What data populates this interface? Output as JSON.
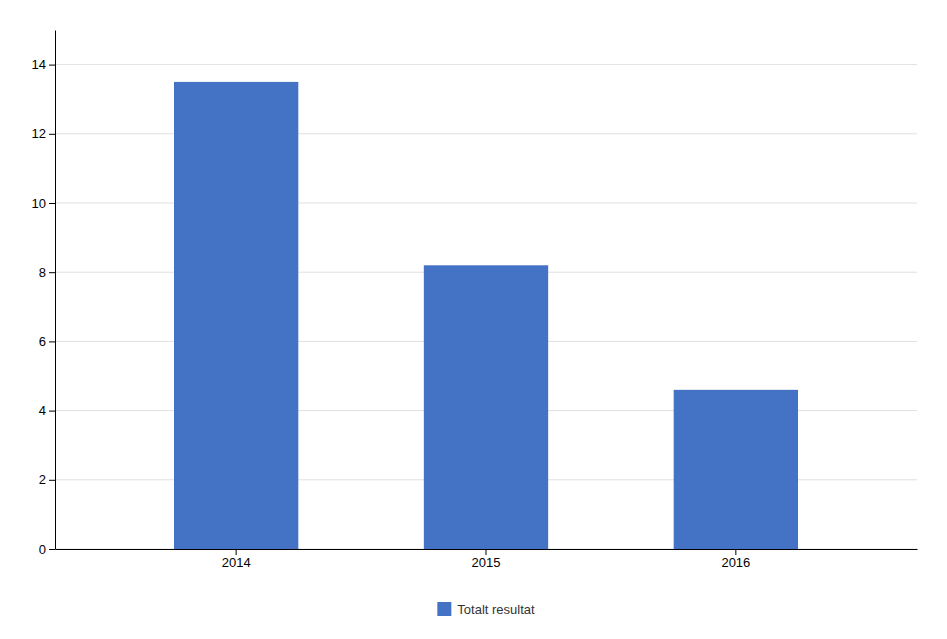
{
  "chart_data": {
    "type": "bar",
    "categories": [
      "2014",
      "2015",
      "2016"
    ],
    "series": [
      {
        "name": "Totalt resultat",
        "color": "#4472C4",
        "values": [
          13.5,
          8.2,
          4.6
        ]
      }
    ],
    "ylim": [
      0,
      15
    ],
    "yticks": [
      0,
      2,
      4,
      6,
      8,
      10,
      12,
      14
    ],
    "grid": true,
    "legend": "bottom"
  }
}
